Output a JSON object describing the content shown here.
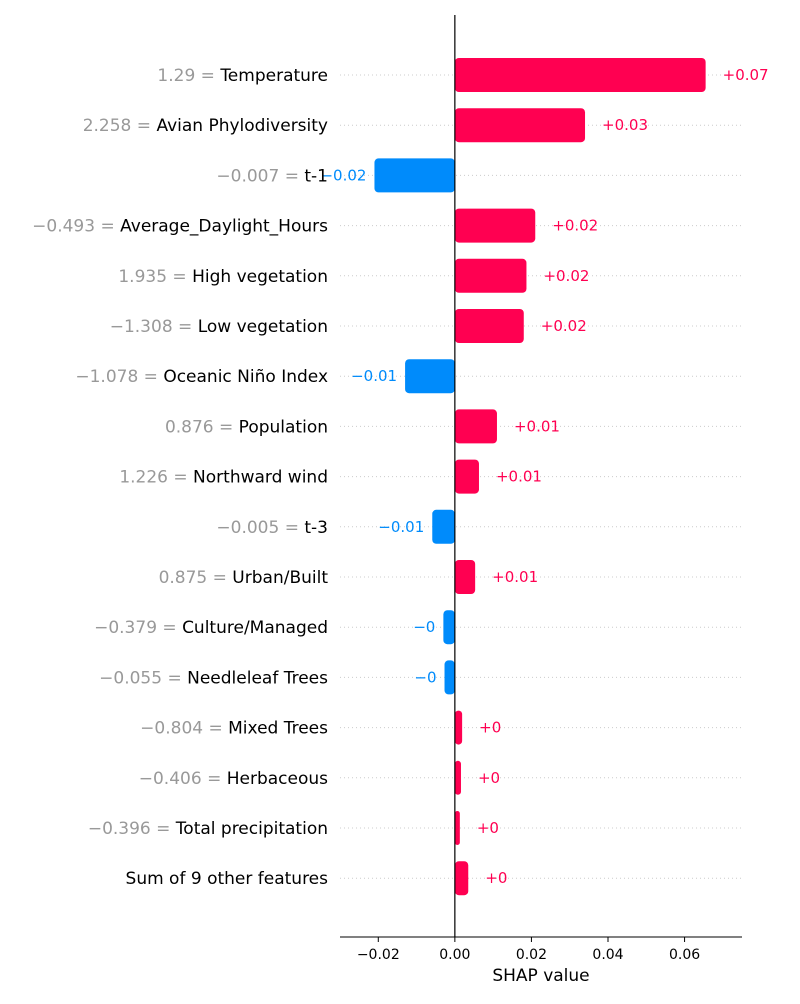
{
  "chart_data": {
    "type": "bar",
    "orientation": "horizontal",
    "xlabel": "SHAP value",
    "xlim": [
      -0.03,
      0.075
    ],
    "xticks": [
      {
        "value": -0.02,
        "label": "−0.02"
      },
      {
        "value": 0.0,
        "label": "0.00"
      },
      {
        "value": 0.02,
        "label": "0.02"
      },
      {
        "value": 0.04,
        "label": "0.04"
      },
      {
        "value": 0.06,
        "label": "0.06"
      }
    ],
    "colors": {
      "positive": "#ff0051",
      "negative": "#008bfb",
      "feature_value": "#999999",
      "feature_name": "#000000",
      "grid": "#cccccc"
    },
    "features": [
      {
        "value_text": "1.29 = ",
        "name": "Temperature",
        "shap": 0.0655,
        "label": "+0.07"
      },
      {
        "value_text": "2.258 = ",
        "name": "Avian Phylodiversity",
        "shap": 0.034,
        "label": "+0.03"
      },
      {
        "value_text": "−0.007 = ",
        "name": "t-1",
        "shap": -0.021,
        "label": "−0.02"
      },
      {
        "value_text": "−0.493 = ",
        "name": "Average_Daylight_Hours",
        "shap": 0.021,
        "label": "+0.02"
      },
      {
        "value_text": "1.935 = ",
        "name": "High vegetation",
        "shap": 0.0187,
        "label": "+0.02"
      },
      {
        "value_text": "−1.308 = ",
        "name": "Low vegetation",
        "shap": 0.018,
        "label": "+0.02"
      },
      {
        "value_text": "−1.078 = ",
        "name": "Oceanic Niño Index",
        "shap": -0.013,
        "label": "−0.01"
      },
      {
        "value_text": "0.876 = ",
        "name": "Population",
        "shap": 0.011,
        "label": "+0.01"
      },
      {
        "value_text": "1.226 = ",
        "name": "Northward wind",
        "shap": 0.0063,
        "label": "+0.01"
      },
      {
        "value_text": "−0.005 = ",
        "name": "t-3",
        "shap": -0.0059,
        "label": "−0.01"
      },
      {
        "value_text": "0.875 = ",
        "name": "Urban/Built",
        "shap": 0.0053,
        "label": "+0.01"
      },
      {
        "value_text": "−0.379 = ",
        "name": "Culture/Managed",
        "shap": -0.003,
        "label": "−0"
      },
      {
        "value_text": "−0.055 = ",
        "name": "Needleleaf Trees",
        "shap": -0.0027,
        "label": "−0"
      },
      {
        "value_text": "−0.804 = ",
        "name": "Mixed Trees",
        "shap": 0.0019,
        "label": "+0"
      },
      {
        "value_text": "−0.406 = ",
        "name": "Herbaceous",
        "shap": 0.0016,
        "label": "+0"
      },
      {
        "value_text": "−0.396 = ",
        "name": "Total precipitation",
        "shap": 0.0013,
        "label": "+0"
      },
      {
        "value_text": "",
        "name": "Sum of 9 other features",
        "shap": 0.0035,
        "label": "+0"
      }
    ]
  }
}
